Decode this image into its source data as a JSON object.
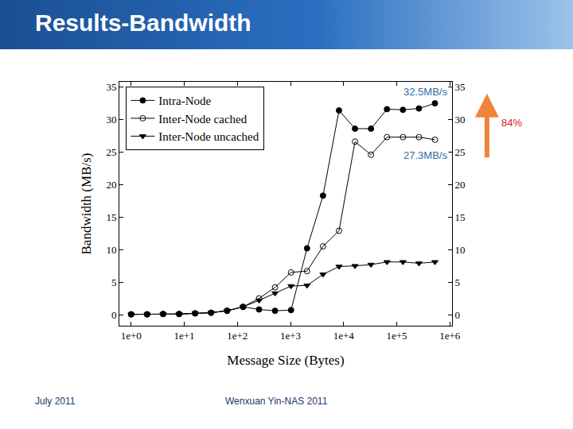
{
  "chart_data": {
    "type": "line",
    "title": "Results-Bandwidth",
    "xlabel": "Message Size (Bytes)",
    "ylabel": "Bandwidth (MB/s)",
    "x": [
      1,
      2,
      4,
      8,
      16,
      32,
      64,
      128,
      256,
      512,
      1024,
      2048,
      4096,
      8192,
      16384,
      32768,
      65536,
      131072,
      262144,
      524288
    ],
    "series": [
      {
        "name": "Intra-Node",
        "color": "#000000",
        "marker": "circle",
        "line_style": "solid",
        "values": [
          0.05,
          0.05,
          0.1,
          0.1,
          0.2,
          0.3,
          0.6,
          1.2,
          0.8,
          0.6,
          0.7,
          10.2,
          18.3,
          31.4,
          28.6,
          28.6,
          31.6,
          31.5,
          31.7,
          32.5
        ]
      },
      {
        "name": "Inter-Node cached",
        "color": "#000000",
        "marker": "circle-open",
        "line_style": "solid",
        "values": [
          0.05,
          0.05,
          0.1,
          0.1,
          0.2,
          0.3,
          0.6,
          1.2,
          2.5,
          4.2,
          6.5,
          6.7,
          10.5,
          12.9,
          26.6,
          24.6,
          27.3,
          27.3,
          27.3,
          26.9
        ]
      },
      {
        "name": "Inter-Node uncached",
        "color": "#000000",
        "marker": "triangle-down",
        "line_style": "solid",
        "values": [
          0.05,
          0.05,
          0.1,
          0.1,
          0.2,
          0.3,
          0.6,
          1.2,
          2.2,
          3.3,
          4.4,
          4.5,
          6.2,
          7.4,
          7.5,
          7.7,
          8.1,
          8.1,
          7.9,
          8.1
        ]
      }
    ],
    "log": "x",
    "xlim": [
      0.6,
      1100000
    ],
    "xticks": [
      {
        "value": 1,
        "label": "1e+0"
      },
      {
        "value": 10,
        "label": "1e+1"
      },
      {
        "value": 100,
        "label": "1e+2"
      },
      {
        "value": 1000,
        "label": "1e+3"
      },
      {
        "value": 10000,
        "label": "1e+4"
      },
      {
        "value": 100000,
        "label": "1e+5"
      },
      {
        "value": 1000000,
        "label": "1e+6"
      }
    ],
    "ylim": [
      -1.7,
      35.8
    ],
    "yticks": [
      0,
      5,
      10,
      15,
      20,
      25,
      30,
      35
    ],
    "y2lim": [
      -1.7,
      35.8
    ],
    "y2ticks": [
      0,
      5,
      10,
      15,
      20,
      25,
      30,
      35
    ],
    "grid": false,
    "legend": "upper left",
    "annotations": [
      {
        "text": "32.5MB/s"
      },
      {
        "text": "27.3MB/s"
      },
      {
        "text": "84%"
      }
    ]
  },
  "slide": {
    "footer_left": "July 2011",
    "footer_center": "Wenxuan Yin-NAS 2011"
  }
}
